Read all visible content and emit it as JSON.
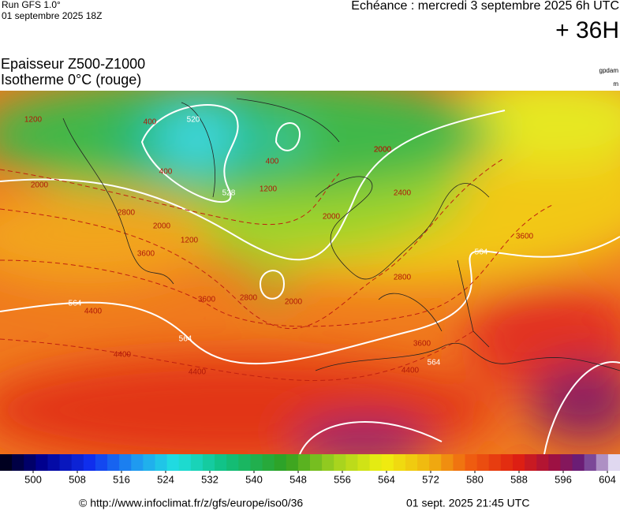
{
  "header": {
    "run": "Run GFS 1.0°",
    "run_date": "01 septembre 2025 18Z",
    "valid": "Echéance : mercredi 3 septembre 2025 6h UTC",
    "lead": "+ 36H"
  },
  "title": {
    "line1": "Epaisseur Z500-Z1000",
    "line2": "Isotherme 0°C (rouge)",
    "unit1": "gpdam",
    "unit2": "m"
  },
  "map_labels": [
    "1200",
    "400",
    "520",
    "400",
    "528",
    "400",
    "1200",
    "2000",
    "2000",
    "2800",
    "2000",
    "1200",
    "3600",
    "2800",
    "3600",
    "2000",
    "564",
    "4400",
    "4400",
    "564",
    "4400",
    "3600",
    "564",
    "2800",
    "2000",
    "2400",
    "2000",
    "564",
    "3600",
    "4400"
  ],
  "colorbar": {
    "labels": [
      500,
      508,
      516,
      524,
      532,
      540,
      548,
      556,
      564,
      572,
      580,
      588,
      596,
      604
    ]
  },
  "footer": {
    "source": "© http://www.infoclimat.fr/z/gfs/europe/iso0/36",
    "timestamp": "01 sept. 2025 21:45 UTC"
  }
}
